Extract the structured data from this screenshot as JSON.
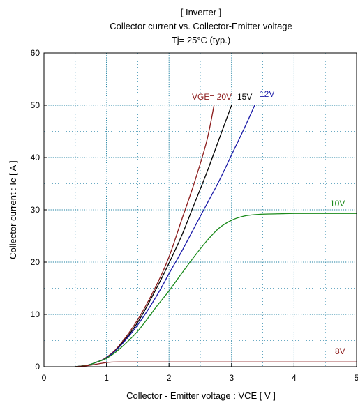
{
  "chart_data": {
    "type": "line",
    "title": [
      "[ Inverter ]",
      "Collector current  vs.  Collector-Emitter voltage",
      "Tj= 25°C  (typ.)"
    ],
    "xlabel": "Collector - Emitter voltage  :  VCE  [ V ]",
    "ylabel": "Collector current  :  Ic  [ A ]",
    "xlim": [
      0,
      5
    ],
    "ylim": [
      0,
      60
    ],
    "xticks": [
      0,
      1,
      2,
      3,
      4,
      5
    ],
    "yticks": [
      0,
      10,
      20,
      30,
      40,
      50,
      60
    ],
    "grid": "dotted, major and minor",
    "series": [
      {
        "name": "VGE= 20V",
        "color": "#8b1a1a",
        "x": [
          0.5,
          0.7,
          0.85,
          1.0,
          1.2,
          1.5,
          1.8,
          2.0,
          2.2,
          2.4,
          2.6,
          2.72
        ],
        "y": [
          0,
          0.3,
          0.9,
          1.8,
          4.0,
          9.0,
          15.6,
          21.0,
          28.0,
          35.0,
          43.0,
          50.0
        ]
      },
      {
        "name": "15V",
        "color": "#000000",
        "x": [
          0.5,
          0.7,
          0.85,
          1.0,
          1.2,
          1.5,
          1.8,
          2.0,
          2.2,
          2.4,
          2.6,
          2.8,
          3.0
        ],
        "y": [
          0,
          0.3,
          0.9,
          1.7,
          3.8,
          8.5,
          15.0,
          19.8,
          25.0,
          31.0,
          37.0,
          43.5,
          50.0
        ]
      },
      {
        "name": "12V",
        "color": "#1a1aa8",
        "x": [
          0.5,
          0.7,
          0.85,
          1.0,
          1.2,
          1.5,
          1.8,
          2.0,
          2.2,
          2.4,
          2.6,
          2.8,
          3.0,
          3.2,
          3.37
        ],
        "y": [
          0,
          0.3,
          0.9,
          1.7,
          3.7,
          8.0,
          13.5,
          17.8,
          22.0,
          26.5,
          31.0,
          35.5,
          40.5,
          45.5,
          50.0
        ]
      },
      {
        "name": "10V",
        "color": "#1a8a1a",
        "x": [
          0.5,
          0.7,
          0.85,
          1.0,
          1.2,
          1.5,
          1.8,
          2.0,
          2.2,
          2.4,
          2.6,
          2.8,
          3.0,
          3.2,
          3.4,
          3.6,
          3.8,
          4.0,
          4.5,
          5.0
        ],
        "y": [
          0,
          0.3,
          0.9,
          1.6,
          3.3,
          6.8,
          11.5,
          14.5,
          17.8,
          21.0,
          24.0,
          26.5,
          28.0,
          28.8,
          29.1,
          29.2,
          29.25,
          29.3,
          29.3,
          29.3
        ]
      },
      {
        "name": "8V",
        "color": "#8b1a1a",
        "x": [
          0.5,
          0.7,
          0.85,
          0.95,
          1.05,
          1.2,
          2.0,
          3.0,
          4.0,
          5.0
        ],
        "y": [
          0,
          0.2,
          0.5,
          0.7,
          0.85,
          0.9,
          0.9,
          0.9,
          0.9,
          0.9
        ]
      }
    ]
  }
}
